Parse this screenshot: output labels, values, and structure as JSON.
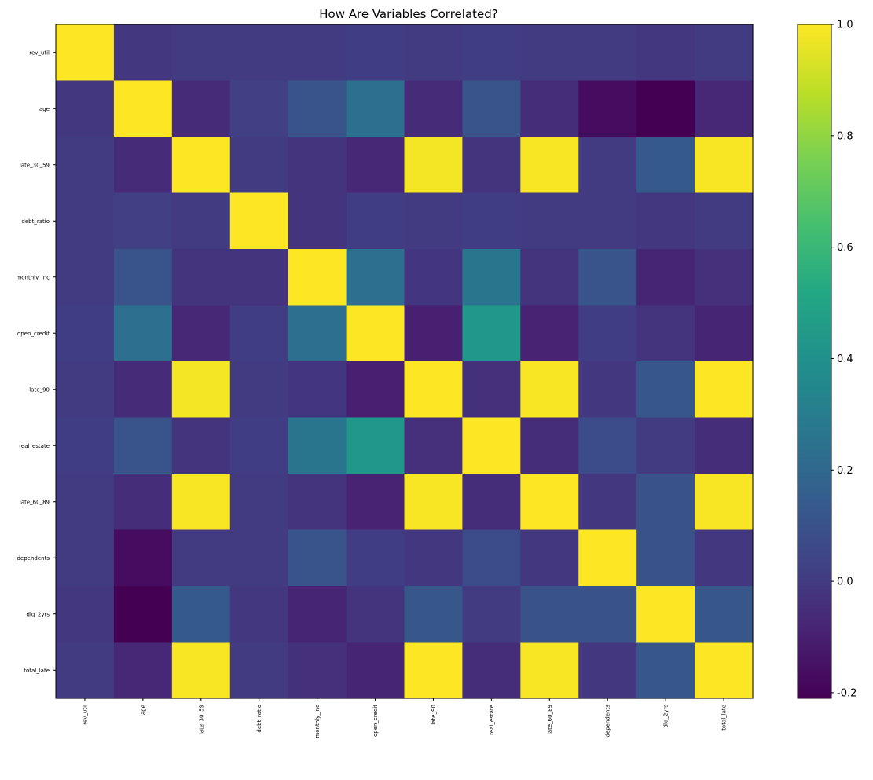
{
  "chart_data": {
    "type": "heatmap",
    "title": "How Are Variables Correlated?",
    "labels": [
      "rev_util",
      "age",
      "late_30_59",
      "debt_ratio",
      "monthly_inc",
      "open_credit",
      "late_90",
      "real_estate",
      "late_60_89",
      "dependents",
      "dlq_2yrs",
      "total_late"
    ],
    "colormap": "viridis",
    "vmin": -0.21,
    "vmax": 1.0,
    "colorbar_ticks": [
      "1.0",
      "0.8",
      "0.6",
      "0.4",
      "0.2",
      "0.0",
      "-0.2"
    ],
    "colorbar_tick_values": [
      1.0,
      0.8,
      0.6,
      0.4,
      0.2,
      0.0,
      -0.2
    ],
    "matrix": [
      [
        1.0,
        -0.01,
        0.0,
        0.0,
        0.0,
        0.01,
        0.0,
        0.01,
        0.0,
        0.0,
        -0.01,
        0.0
      ],
      [
        -0.01,
        1.0,
        -0.06,
        0.02,
        0.11,
        0.23,
        -0.06,
        0.11,
        -0.05,
        -0.17,
        -0.21,
        -0.07
      ],
      [
        0.0,
        -0.06,
        1.0,
        0.0,
        -0.03,
        -0.07,
        0.98,
        -0.03,
        0.99,
        0.0,
        0.13,
        0.99
      ],
      [
        0.0,
        0.02,
        0.0,
        1.0,
        -0.03,
        0.01,
        0.0,
        0.01,
        0.0,
        0.0,
        -0.01,
        0.0
      ],
      [
        0.0,
        0.11,
        -0.03,
        -0.03,
        1.0,
        0.23,
        -0.02,
        0.26,
        -0.03,
        0.11,
        -0.08,
        -0.04
      ],
      [
        0.01,
        0.23,
        -0.07,
        0.01,
        0.23,
        1.0,
        -0.1,
        0.43,
        -0.09,
        0.01,
        -0.03,
        -0.08
      ],
      [
        0.0,
        -0.06,
        0.98,
        0.0,
        -0.02,
        -0.1,
        1.0,
        -0.04,
        0.99,
        -0.01,
        0.12,
        1.0
      ],
      [
        0.01,
        0.11,
        -0.03,
        0.01,
        0.26,
        0.43,
        -0.04,
        1.0,
        -0.05,
        0.07,
        0.0,
        -0.05
      ],
      [
        0.0,
        -0.05,
        0.99,
        0.0,
        -0.03,
        -0.09,
        0.99,
        -0.05,
        1.0,
        -0.01,
        0.1,
        0.99
      ],
      [
        0.0,
        -0.17,
        0.0,
        0.0,
        0.11,
        0.01,
        -0.01,
        0.07,
        -0.01,
        1.0,
        0.1,
        -0.01
      ],
      [
        -0.01,
        -0.21,
        0.13,
        -0.01,
        -0.08,
        -0.03,
        0.12,
        0.0,
        0.1,
        0.1,
        1.0,
        0.12
      ],
      [
        0.0,
        -0.07,
        0.99,
        0.0,
        -0.04,
        -0.08,
        1.0,
        -0.05,
        0.99,
        -0.01,
        0.12,
        1.0
      ]
    ]
  }
}
